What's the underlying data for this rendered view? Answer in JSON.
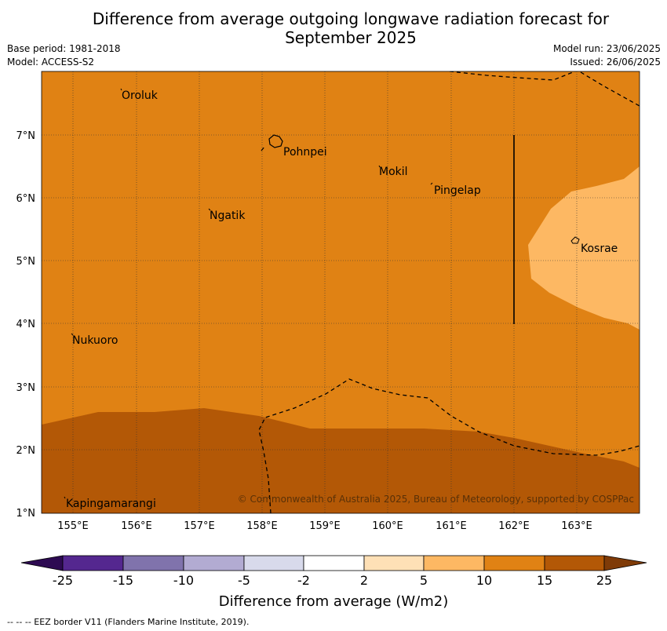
{
  "title_line1": "Difference from average outgoing longwave radiation forecast for",
  "title_line2": "September 2025",
  "base_period": "Base period: 1981-2018",
  "model": "Model: ACCESS-S2",
  "model_run": "Model run: 23/06/2025",
  "issued": "Issued: 26/06/2025",
  "lon_ticks": [
    "155°E",
    "156°E",
    "157°E",
    "158°E",
    "159°E",
    "160°E",
    "161°E",
    "162°E",
    "163°E"
  ],
  "lat_ticks": [
    "7°N",
    "6°N",
    "5°N",
    "4°N",
    "3°N",
    "2°N",
    "1°N"
  ],
  "places": {
    "oroluk": "Oroluk",
    "pohnpei": "Pohnpei",
    "mokil": "Mokil",
    "pingelap": "Pingelap",
    "ngatik": "Ngatik",
    "kosrae": "Kosrae",
    "nukuoro": "Nukuoro",
    "kapingamarangi": "Kapingamarangi"
  },
  "copyright": "© Commonwealth of Australia 2025, Bureau of Meteorology, supported by COSPPac",
  "colorbar": {
    "ticks": [
      "-25",
      "-15",
      "-10",
      "-5",
      "-2",
      "2",
      "5",
      "10",
      "15",
      "25"
    ],
    "colors": [
      "#2d0a52",
      "#54278f",
      "#8073ac",
      "#b2abd2",
      "#d8daeb",
      "#ffffff",
      "#fee0b6",
      "#fdb863",
      "#e08214",
      "#b35806",
      "#7f3b08"
    ],
    "label": "Difference from average (W/m2)"
  },
  "footer": "-- -- -- EEZ border V11 (Flanders Marine Institute, 2019)."
}
